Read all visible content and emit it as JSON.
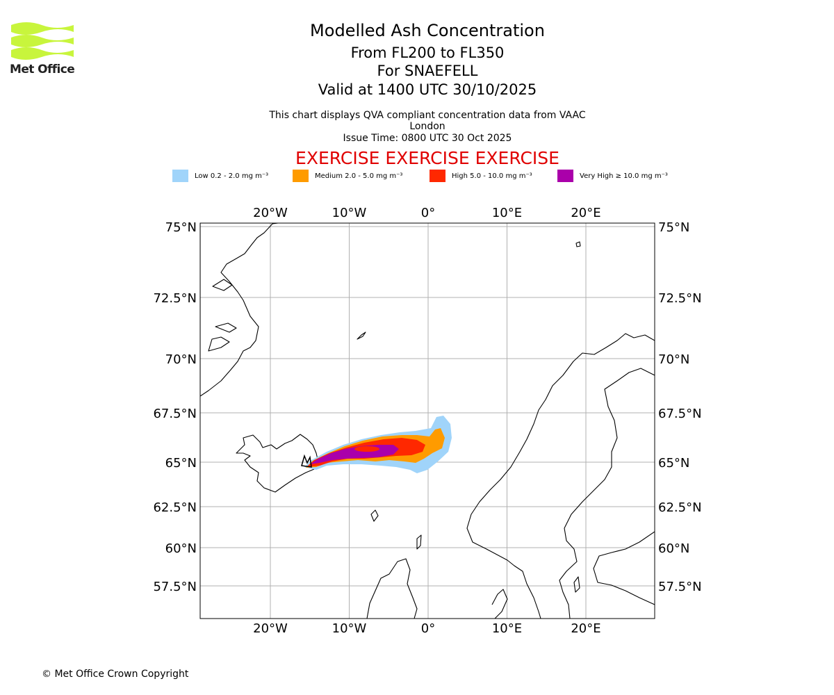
{
  "branding": {
    "logo_text": "Met Office",
    "logo_color": "#c8f53c",
    "copyright": "© Met Office Crown Copyright"
  },
  "titles": {
    "main": "Modelled Ash Concentration",
    "levels": "From FL200 to FL350",
    "volcano": "For SNAEFELL",
    "valid": "Valid at 1400 UTC 30/10/2025",
    "compliance": "This chart displays QVA compliant concentration data from VAAC London",
    "issue_time": "Issue Time: 0800 UTC 30 Oct 2025",
    "exercise_banner": "EXERCISE EXERCISE EXERCISE"
  },
  "legend": [
    {
      "label": "Low 0.2 - 2.0 mg m⁻³",
      "color": "#a0d4fa"
    },
    {
      "label": "Medium 2.0 - 5.0 mg m⁻³",
      "color": "#ff9b00"
    },
    {
      "label": "High 5.0 - 10.0 mg m⁻³",
      "color": "#ff2800"
    },
    {
      "label": "Very High  ≥  10.0 mg m⁻³",
      "color": "#aa00aa"
    }
  ],
  "map": {
    "lon_ticks": [
      {
        "value": -20,
        "label": "20°W"
      },
      {
        "value": -10,
        "label": "10°W"
      },
      {
        "value": 0,
        "label": "0°"
      },
      {
        "value": 10,
        "label": "10°E"
      },
      {
        "value": 20,
        "label": "20°E"
      }
    ],
    "lat_ticks": [
      {
        "value": 75,
        "label": "75°N"
      },
      {
        "value": 72.5,
        "label": "72.5°N"
      },
      {
        "value": 70,
        "label": "70°N"
      },
      {
        "value": 67.5,
        "label": "67.5°N"
      },
      {
        "value": 65,
        "label": "65°N"
      },
      {
        "value": 62.5,
        "label": "62.5°N"
      },
      {
        "value": 60,
        "label": "60°N"
      },
      {
        "value": 57.5,
        "label": "57.5°N"
      }
    ],
    "volcano_lat": 64.8,
    "volcano_lon": -15.6
  }
}
